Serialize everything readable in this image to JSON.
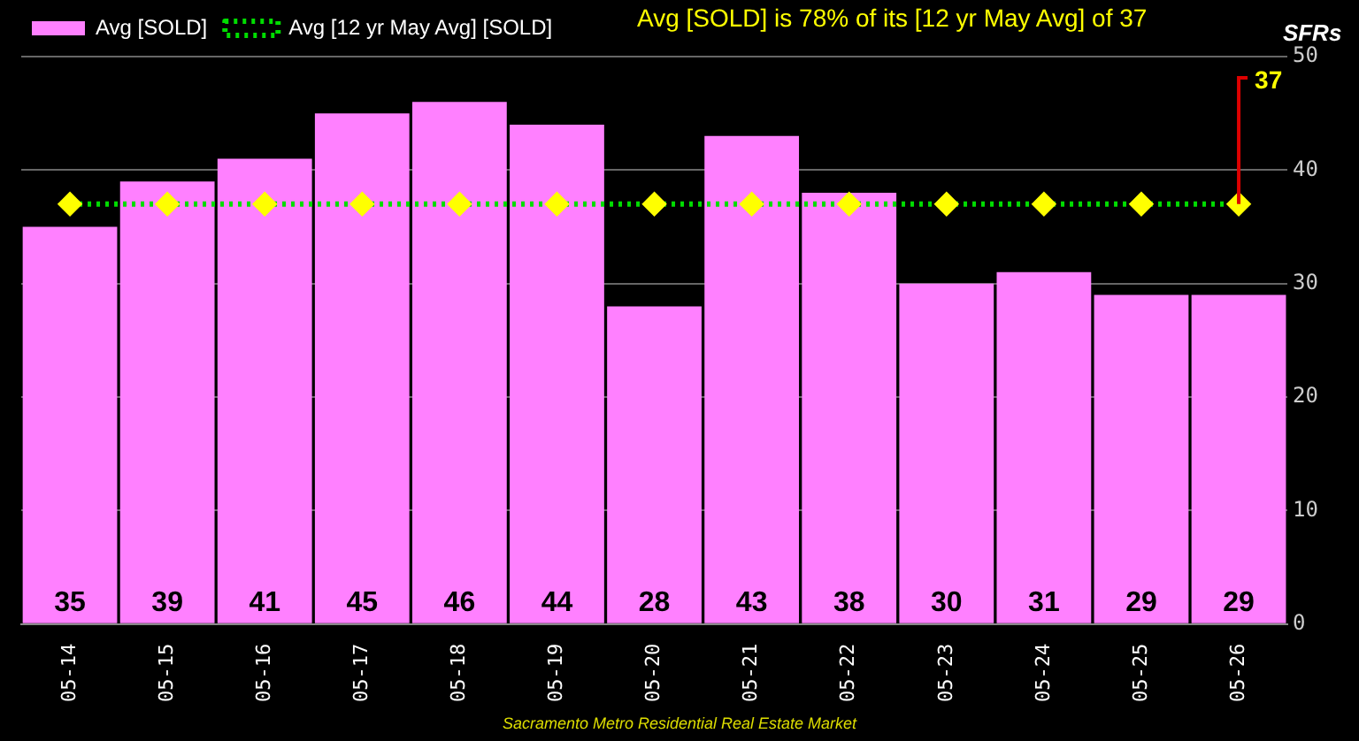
{
  "chart_data": {
    "type": "bar",
    "title": "Avg [SOLD] is 78% of its [12 yr May Avg] of 37",
    "ylabel": "SFRs",
    "categories": [
      "05-14",
      "05-15",
      "05-16",
      "05-17",
      "05-18",
      "05-19",
      "05-20",
      "05-21",
      "05-22",
      "05-23",
      "05-24",
      "05-25",
      "05-26"
    ],
    "series": [
      {
        "name": "Avg [SOLD]",
        "color": "#ff80ff",
        "values": [
          35,
          39,
          41,
          45,
          46,
          44,
          28,
          43,
          38,
          30,
          31,
          29,
          29
        ],
        "value_labels": [
          "35",
          "39",
          "41",
          "45",
          "46",
          "44",
          "28",
          "43",
          "38",
          "30",
          "31",
          "29",
          "29"
        ]
      },
      {
        "name": "Avg [12 yr May Avg] [SOLD]",
        "type": "line",
        "color": "#00dd00",
        "line_style": "dotted",
        "marker": "diamond",
        "values": [
          37,
          37,
          37,
          37,
          37,
          37,
          37,
          37,
          37,
          37,
          37,
          37,
          37
        ]
      }
    ],
    "ylim": [
      0,
      50
    ],
    "yticks": [
      0,
      10,
      20,
      30,
      40,
      50
    ],
    "grid": "y",
    "legend": "top left",
    "annotations": [
      {
        "text": "37",
        "x": "05-26",
        "y": 37
      },
      "Sacramento Metro Residential Real Estate Market"
    ]
  }
}
